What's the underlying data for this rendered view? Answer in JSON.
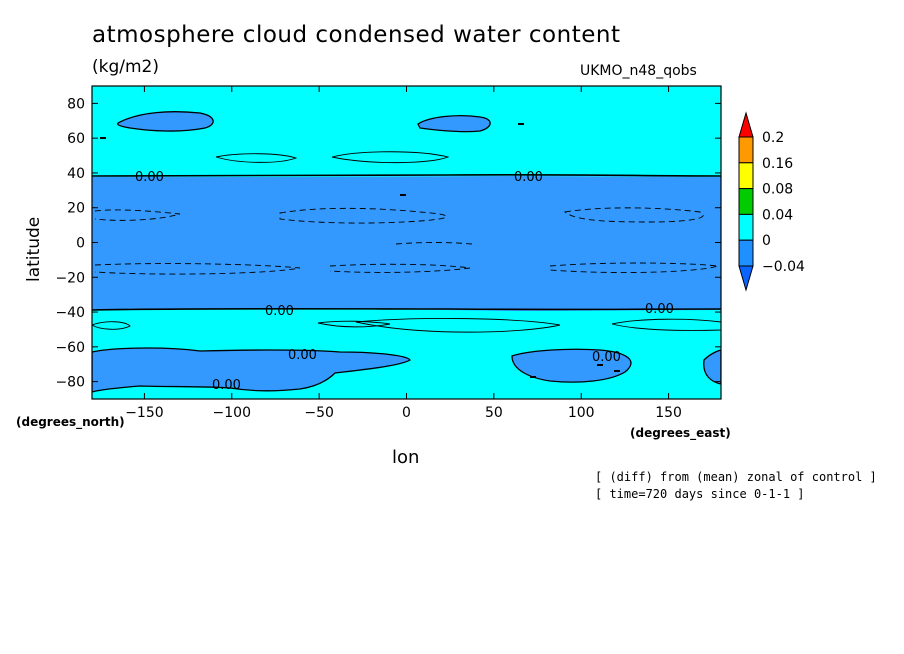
{
  "chart_data": {
    "type": "contour",
    "title": "atmosphere cloud condensed water content",
    "units": "(kg/m2)",
    "model_label": "UKMO_n48_qobs",
    "xlabel": "lon",
    "ylabel": "latitude",
    "x_units": "(degrees_east)",
    "y_units": "(degrees_north)",
    "xlim": [
      -180,
      180
    ],
    "ylim": [
      -90,
      90
    ],
    "x_ticks": [
      -150,
      -100,
      -50,
      0,
      50,
      100,
      150
    ],
    "y_ticks": [
      80,
      60,
      40,
      20,
      0,
      -20,
      -40,
      -60,
      -80
    ],
    "contour_labels": [
      "0.00",
      "0.00",
      "0.00",
      "0.00",
      "0.00",
      "0.00",
      "0.00"
    ],
    "colorbar": {
      "levels": [
        "0.2",
        "0.16",
        "0.08",
        "0.04",
        "0",
        "-0.04"
      ],
      "colors": [
        "#ff0000",
        "#ff9900",
        "#ffff00",
        "#00cc00",
        "#00ffff",
        "#1e90ff",
        "#0a64ff"
      ]
    },
    "fill_colors": {
      "positive": "#00ffff",
      "negative": "#3399ff"
    },
    "notes": [
      "[ (diff) from (mean) zonal of control ]",
      "[ time=720 days since 0-1-1 ]"
    ]
  }
}
